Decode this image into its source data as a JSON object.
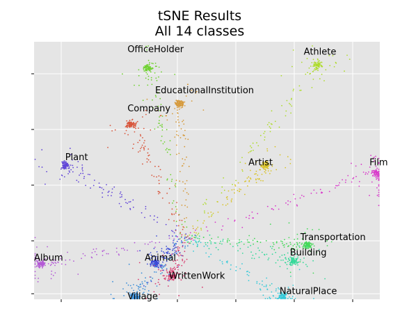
{
  "chart_data": {
    "type": "scatter",
    "title": [
      "tSNE Results",
      "All 14 classes"
    ],
    "xlabel": "",
    "ylabel": "",
    "grid": true,
    "xlim": [
      0,
      100
    ],
    "ylim": [
      0,
      100
    ],
    "tick_labels_shown": false,
    "background_color": "#e5e5e5",
    "classes": [
      {
        "name": "OfficeHolder",
        "color": "#6fd230",
        "label_pos": [
          27,
          96
        ],
        "cluster": [
          33,
          90
        ]
      },
      {
        "name": "Athlete",
        "color": "#aedc2c",
        "label_pos": [
          78,
          95
        ],
        "cluster": [
          82,
          91
        ]
      },
      {
        "name": "EducationalInstitution",
        "color": "#d69a3c",
        "label_pos": [
          35,
          80
        ],
        "cluster": [
          42,
          76
        ]
      },
      {
        "name": "Company",
        "color": "#d8563c",
        "label_pos": [
          27,
          73
        ],
        "cluster": [
          28,
          68
        ]
      },
      {
        "name": "Plant",
        "color": "#6145d8",
        "label_pos": [
          9,
          54
        ],
        "cluster": [
          9,
          52
        ]
      },
      {
        "name": "Artist",
        "color": "#d9c32a",
        "label_pos": [
          62,
          52
        ],
        "cluster": [
          67,
          52
        ]
      },
      {
        "name": "Film",
        "color": "#d83aca",
        "label_pos": [
          97,
          52
        ],
        "cluster": [
          99,
          49
        ]
      },
      {
        "name": "Transportation",
        "color": "#46d95a",
        "label_pos": [
          77,
          23
        ],
        "cluster": [
          79,
          21
        ]
      },
      {
        "name": "Building",
        "color": "#35d99a",
        "label_pos": [
          74,
          17
        ],
        "cluster": [
          75,
          15
        ]
      },
      {
        "name": "Album",
        "color": "#b45bd6",
        "label_pos": [
          0,
          15
        ],
        "cluster": [
          2,
          14
        ]
      },
      {
        "name": "Animal",
        "color": "#3c4bd7",
        "label_pos": [
          32,
          15
        ],
        "cluster": [
          35,
          14
        ]
      },
      {
        "name": "WrittenWork",
        "color": "#d93a6e",
        "label_pos": [
          39,
          8
        ],
        "cluster": [
          40,
          9
        ]
      },
      {
        "name": "NaturalPlace",
        "color": "#35c9d9",
        "label_pos": [
          71,
          2
        ],
        "cluster": [
          72,
          1
        ]
      },
      {
        "name": "Village",
        "color": "#3c8fd9",
        "label_pos": [
          27,
          0
        ],
        "cluster": [
          29,
          1
        ]
      }
    ]
  }
}
